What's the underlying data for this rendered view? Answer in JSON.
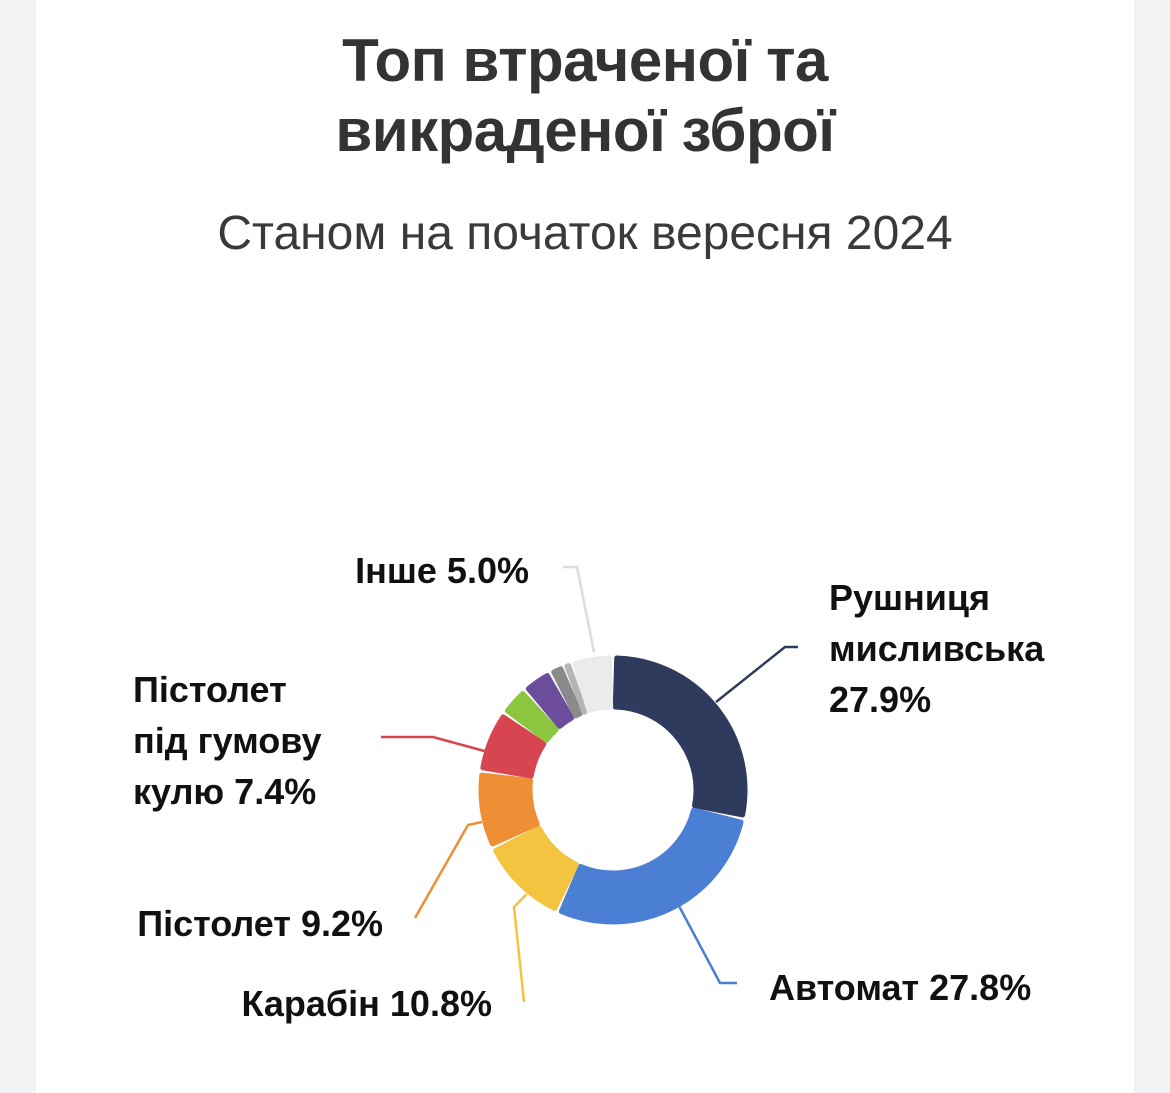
{
  "header": {
    "title_line1": "Топ втраченої та",
    "title_line2": "викраденої зброї",
    "subtitle": "Станом на початок вересня 2024"
  },
  "chart_data": {
    "type": "pie",
    "variant": "donut",
    "title": "Топ втраченої та викраденої зброї",
    "subtitle": "Станом на початок вересня 2024",
    "unit": "%",
    "slices": [
      {
        "label": "Рушниця мисливська",
        "value": 27.9,
        "display": "27.9%",
        "color": "#2f3b5c",
        "label_lines": [
          "Рушниця",
          "мисливська",
          "27.9%"
        ]
      },
      {
        "label": "Автомат",
        "value": 27.8,
        "display": "27.8%",
        "color": "#4a7fd4",
        "label_lines": [
          "Автомат 27.8%"
        ]
      },
      {
        "label": "Карабін",
        "value": 10.8,
        "display": "10.8%",
        "color": "#f2c440",
        "label_lines": [
          "Карабін 10.8%"
        ]
      },
      {
        "label": "Пістолет",
        "value": 9.2,
        "display": "9.2%",
        "color": "#ef8f35",
        "label_lines": [
          "Пістолет 9.2%"
        ]
      },
      {
        "label": "Пістолет під гумову кулю",
        "value": 7.4,
        "display": "7.4%",
        "color": "#d64550",
        "label_lines": [
          "Пістолет",
          "під гумову",
          "кулю 7.4%"
        ]
      },
      {
        "label": "",
        "value": 3.6,
        "display": "",
        "color": "#8cc63e",
        "label_lines": []
      },
      {
        "label": "",
        "value": 3.6,
        "display": "",
        "color": "#6b4d9c",
        "label_lines": []
      },
      {
        "label": "",
        "value": 1.8,
        "display": "",
        "color": "#8a8a8a",
        "label_lines": []
      },
      {
        "label": "",
        "value": 0.9,
        "display": "",
        "color": "#b5b5b5",
        "label_lines": []
      },
      {
        "label": "Інше",
        "value": 5.0,
        "display": "5.0%",
        "color": "#ebebeb",
        "label_lines": [
          "Інше 5.0%"
        ]
      }
    ],
    "legend": "none"
  }
}
